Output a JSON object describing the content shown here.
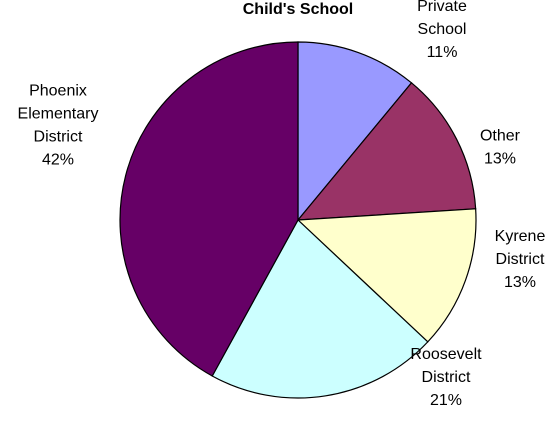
{
  "chart_data": {
    "type": "pie",
    "title": "Child's School",
    "start_angle_deg": 0,
    "direction": "clockwise",
    "slices": [
      {
        "label_lines": [
          "Private",
          "School",
          "11%"
        ],
        "value": 11,
        "color": "#9999ff"
      },
      {
        "label_lines": [
          "Other",
          "13%"
        ],
        "value": 13,
        "color": "#993366"
      },
      {
        "label_lines": [
          "Kyrene",
          "District",
          "13%"
        ],
        "value": 13,
        "color": "#ffffcc"
      },
      {
        "label_lines": [
          "Roosevelt",
          "District",
          "21%"
        ],
        "value": 21,
        "color": "#ccffff"
      },
      {
        "label_lines": [
          "Phoenix",
          "Elementary",
          "District",
          "42%"
        ],
        "value": 42,
        "color": "#660066"
      }
    ],
    "legend": "none"
  }
}
